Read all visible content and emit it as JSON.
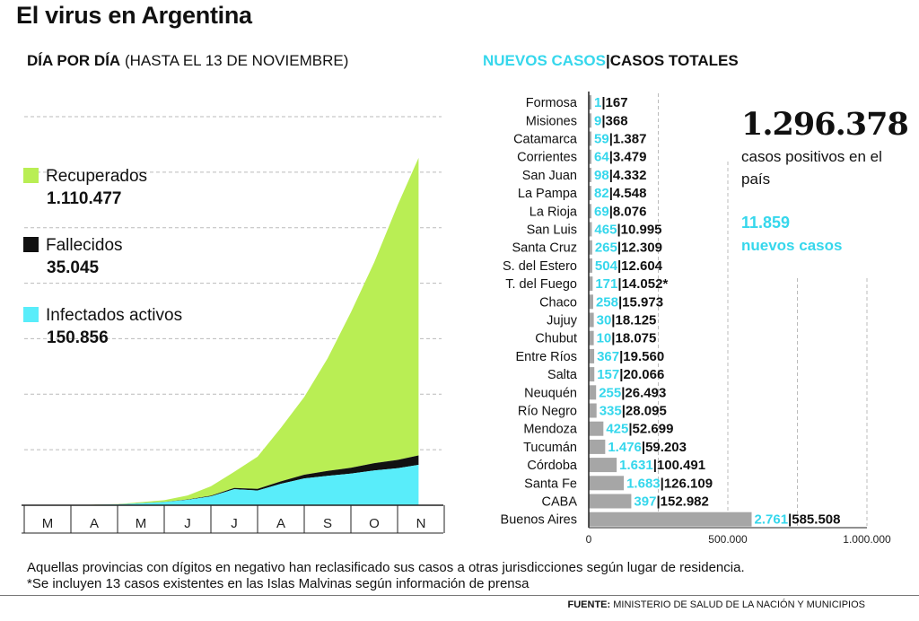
{
  "title": "El virus en Argentina",
  "left_subtitle": {
    "bold": "DÍA POR DÍA",
    "normal": "(HASTA EL 13 DE NOVIEMBRE)"
  },
  "right_subtitle": {
    "new": "NUEVOS CASOS",
    "sep": "|",
    "total": "CASOS TOTALES"
  },
  "legend": [
    {
      "label": "Recuperados",
      "value": "1.110.477",
      "color": "#b9ee54"
    },
    {
      "label": "Fallecidos",
      "value": "35.045",
      "color": "#111111"
    },
    {
      "label": "Infectados activos",
      "value": "150.856",
      "color": "#59edfa"
    }
  ],
  "summary": {
    "total": "1.296.378",
    "total_label": "casos positivos en el país",
    "new": "11.859",
    "new_label": "nuevos casos"
  },
  "footnotes": [
    "Aquellas provincias con dígitos en negativo han reclasificado sus casos a otras jurisdicciones según lugar de residencia.",
    "*Se incluyen 13 casos existentes en las Islas Malvinas según información de prensa"
  ],
  "source": {
    "label": "FUENTE:",
    "text": "MINISTERIO DE SALUD DE LA NACIÓN Y MUNICIPIOS"
  },
  "colors": {
    "recovered": "#b9ee54",
    "deaths": "#111111",
    "active": "#59edfa",
    "accent": "#36d7ec",
    "bar": "#a6a6a6"
  },
  "chart_data": [
    {
      "type": "area",
      "title": "DÍA POR DÍA (HASTA EL 13 DE NOVIEMBRE)",
      "stacked": true,
      "x_ticks": [
        "M",
        "A",
        "M",
        "J",
        "J",
        "A",
        "S",
        "O",
        "N"
      ],
      "x": [
        0,
        1,
        2,
        3,
        3.5,
        4,
        4.5,
        5,
        5.5,
        6,
        6.5,
        7,
        7.5,
        8,
        8.45
      ],
      "series": [
        {
          "name": "Infectados activos",
          "values": [
            0,
            0,
            3000,
            12000,
            20000,
            33000,
            60000,
            55000,
            80000,
            100000,
            110000,
            118000,
            130000,
            138000,
            150856
          ]
        },
        {
          "name": "Fallecidos",
          "values": [
            0,
            0,
            200,
            800,
            1500,
            2500,
            4500,
            6000,
            9000,
            14000,
            18000,
            22000,
            27000,
            31000,
            35045
          ]
        },
        {
          "name": "Recuperados",
          "values": [
            0,
            0,
            1000,
            6000,
            15000,
            35000,
            60000,
            120000,
            200000,
            290000,
            420000,
            580000,
            750000,
            950000,
            1110477
          ]
        }
      ],
      "ylim": [
        0,
        1450000
      ]
    },
    {
      "type": "bar",
      "orientation": "horizontal",
      "categories": [
        "Formosa",
        "Misiones",
        "Catamarca",
        "Corrientes",
        "San Juan",
        "La Pampa",
        "La Rioja",
        "San Luis",
        "Santa Cruz",
        "S. del Estero",
        "T. del Fuego",
        "Chaco",
        "Jujuy",
        "Chubut",
        "Entre Ríos",
        "Salta",
        "Neuquén",
        "Río Negro",
        "Mendoza",
        "Tucumán",
        "Córdoba",
        "Santa Fe",
        "CABA",
        "Buenos Aires"
      ],
      "new_cases": [
        "1",
        "9",
        "59",
        "64",
        "98",
        "82",
        "69",
        "465",
        "265",
        "504",
        "171",
        "258",
        "30",
        "10",
        "367",
        "157",
        "255",
        "335",
        "425",
        "1.476",
        "1.631",
        "1.683",
        "397",
        "2.761"
      ],
      "total_labels": [
        "167",
        "368",
        "1.387",
        "3.479",
        "4.332",
        "4.548",
        "8.076",
        "10.995",
        "12.309",
        "12.604",
        "14.052*",
        "15.973",
        "18.125",
        "18.075",
        "19.560",
        "20.066",
        "26.493",
        "28.095",
        "52.699",
        "59.203",
        "100.491",
        "126.109",
        "152.982",
        "585.508"
      ],
      "values": [
        167,
        368,
        1387,
        3479,
        4332,
        4548,
        8076,
        10995,
        12309,
        12604,
        14052,
        15973,
        18125,
        18075,
        19560,
        20066,
        26493,
        28095,
        52699,
        59203,
        100491,
        126109,
        152982,
        585508
      ],
      "x_ticks": [
        "0",
        "500.000",
        "1.000.000"
      ],
      "xlim": [
        0,
        1000000
      ]
    }
  ]
}
